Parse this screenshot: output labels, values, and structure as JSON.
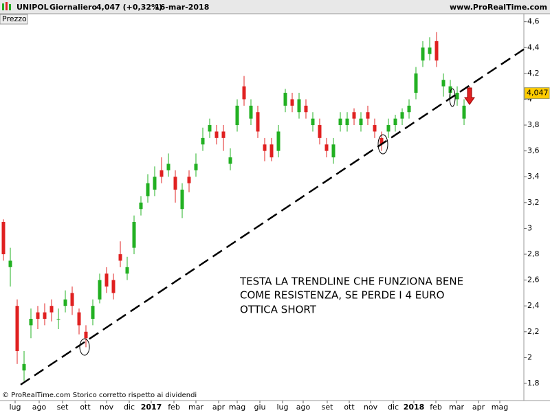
{
  "header": {
    "symbol": "UNIPOL",
    "period": "Giornaliero",
    "price": "4,047 (+0,32%)",
    "date": "16-mar-2018",
    "site": "www.ProRealTime.com"
  },
  "chart_data": {
    "type": "candlestick",
    "panel_label": "Prezzo",
    "x": [
      5,
      15,
      25,
      35,
      45,
      55,
      65,
      75,
      85,
      95,
      105,
      115,
      125,
      135,
      145,
      155,
      165,
      175,
      185,
      195,
      205,
      215,
      225,
      235,
      245,
      255,
      265,
      275,
      285,
      295,
      305,
      315,
      325,
      335,
      345,
      355,
      365,
      375,
      385,
      395,
      405,
      415,
      425,
      435,
      445,
      455,
      465,
      475,
      485,
      495,
      505,
      515,
      525,
      535,
      545,
      555,
      565,
      575,
      585,
      595,
      605,
      615,
      625,
      635,
      645,
      655,
      665,
      675,
      683
    ],
    "open": [
      3.05,
      2.7,
      2.4,
      1.9,
      2.25,
      2.35,
      2.35,
      2.4,
      2.3,
      2.4,
      2.5,
      2.35,
      2.2,
      2.3,
      2.45,
      2.65,
      2.6,
      2.8,
      2.65,
      2.85,
      3.15,
      3.25,
      3.3,
      3.45,
      3.45,
      3.4,
      3.15,
      3.4,
      3.45,
      3.65,
      3.75,
      3.75,
      3.75,
      3.5,
      3.8,
      4.1,
      3.85,
      3.9,
      3.65,
      3.65,
      3.6,
      3.95,
      4.0,
      3.9,
      3.95,
      3.8,
      3.8,
      3.65,
      3.55,
      3.8,
      3.8,
      3.9,
      3.8,
      3.9,
      3.8,
      3.7,
      3.75,
      3.8,
      3.85,
      3.9,
      4.05,
      4.3,
      4.35,
      4.45,
      4.1,
      4.05,
      4.0,
      3.85,
      4.05
    ],
    "high": [
      3.07,
      2.85,
      2.45,
      2.05,
      2.38,
      2.4,
      2.42,
      2.45,
      2.38,
      2.52,
      2.55,
      2.38,
      2.25,
      2.45,
      2.65,
      2.7,
      2.65,
      2.9,
      2.78,
      3.1,
      3.25,
      3.42,
      3.48,
      3.55,
      3.58,
      3.45,
      3.35,
      3.45,
      3.58,
      3.78,
      3.85,
      3.8,
      3.8,
      3.62,
      4.0,
      4.18,
      4.0,
      3.95,
      3.7,
      3.7,
      3.8,
      4.08,
      4.05,
      4.05,
      4.0,
      3.9,
      3.85,
      3.7,
      3.7,
      3.9,
      3.9,
      3.93,
      3.9,
      3.95,
      3.85,
      3.75,
      3.85,
      3.88,
      3.93,
      4.0,
      4.25,
      4.45,
      4.48,
      4.52,
      4.2,
      4.15,
      4.1,
      4.0,
      4.1
    ],
    "low": [
      2.75,
      2.55,
      1.95,
      1.82,
      2.15,
      2.22,
      2.25,
      2.28,
      2.22,
      2.35,
      2.33,
      2.18,
      2.08,
      2.25,
      2.42,
      2.5,
      2.45,
      2.7,
      2.6,
      2.8,
      3.1,
      3.2,
      3.25,
      3.35,
      3.4,
      3.2,
      3.08,
      3.28,
      3.4,
      3.6,
      3.7,
      3.65,
      3.6,
      3.45,
      3.75,
      3.95,
      3.8,
      3.7,
      3.52,
      3.52,
      3.55,
      3.9,
      3.9,
      3.85,
      3.85,
      3.75,
      3.65,
      3.55,
      3.5,
      3.75,
      3.75,
      3.8,
      3.75,
      3.8,
      3.7,
      3.6,
      3.7,
      3.75,
      3.8,
      3.85,
      4.0,
      4.25,
      4.3,
      4.25,
      4.02,
      4.0,
      3.95,
      3.8,
      4.0
    ],
    "close": [
      2.8,
      2.75,
      2.05,
      1.95,
      2.3,
      2.3,
      2.3,
      2.35,
      2.3,
      2.45,
      2.4,
      2.25,
      2.15,
      2.4,
      2.6,
      2.55,
      2.5,
      2.75,
      2.7,
      3.05,
      3.2,
      3.35,
      3.4,
      3.4,
      3.5,
      3.3,
      3.3,
      3.35,
      3.5,
      3.7,
      3.8,
      3.7,
      3.7,
      3.55,
      3.95,
      4.0,
      3.95,
      3.75,
      3.6,
      3.55,
      3.75,
      4.05,
      3.95,
      4.0,
      3.9,
      3.85,
      3.7,
      3.6,
      3.65,
      3.85,
      3.85,
      3.85,
      3.85,
      3.85,
      3.75,
      3.65,
      3.8,
      3.85,
      3.9,
      3.95,
      4.2,
      4.4,
      4.4,
      4.3,
      4.15,
      4.1,
      4.05,
      3.95,
      4.047
    ],
    "last_label": "4,047",
    "up_color": "#22b022",
    "down_color": "#e02020",
    "xlim": [
      0,
      762
    ],
    "xticks": [
      {
        "value": 22,
        "label": "lug"
      },
      {
        "value": 57,
        "label": "ago"
      },
      {
        "value": 91,
        "label": "set"
      },
      {
        "value": 124,
        "label": "ott"
      },
      {
        "value": 155,
        "label": "nov"
      },
      {
        "value": 188,
        "label": "dic"
      },
      {
        "value": 220,
        "label": "2017"
      },
      {
        "value": 253,
        "label": "feb"
      },
      {
        "value": 285,
        "label": "mar"
      },
      {
        "value": 318,
        "label": "apr"
      },
      {
        "value": 345,
        "label": "mag"
      },
      {
        "value": 378,
        "label": "giu"
      },
      {
        "value": 411,
        "label": "lug"
      },
      {
        "value": 441,
        "label": "ago"
      },
      {
        "value": 476,
        "label": "set"
      },
      {
        "value": 508,
        "label": "ott"
      },
      {
        "value": 539,
        "label": "nov"
      },
      {
        "value": 572,
        "label": "dic"
      },
      {
        "value": 602,
        "label": "2018"
      },
      {
        "value": 634,
        "label": "feb"
      },
      {
        "value": 664,
        "label": "mar"
      },
      {
        "value": 696,
        "label": "apr"
      },
      {
        "value": 727,
        "label": "mag"
      }
    ],
    "ylim": [
      1.667,
      4.662
    ],
    "yticks": [
      {
        "value": 1.8,
        "label": "1,8"
      },
      2,
      {
        "value": 2.2,
        "label": "2,2"
      },
      {
        "value": 2.4,
        "label": "2,4"
      },
      {
        "value": 2.6,
        "label": "2,6"
      },
      {
        "value": 2.8,
        "label": "2,8"
      },
      3,
      {
        "value": 3.2,
        "label": "3,2"
      },
      {
        "value": 3.4,
        "label": "3,4"
      },
      {
        "value": 3.6,
        "label": "3,6"
      },
      {
        "value": 3.8,
        "label": "3,8"
      },
      4,
      {
        "value": 4.2,
        "label": "4,2"
      },
      {
        "value": 4.4,
        "label": "4,4"
      },
      {
        "value": 4.6,
        "label": "4,6"
      }
    ],
    "trendline": {
      "x": [
        30,
        762
      ],
      "y": [
        1.79,
        4.387
      ]
    },
    "annotation": [
      "TESTA LA TRENDLINE CHE FUNZIONA BENE",
      "COME RESISTENZA, SE PERDE I 4 EURO",
      "OTTICA SHORT"
    ],
    "footer": "© ProRealTime.com  Storico corretto rispetto ai dividendi"
  }
}
